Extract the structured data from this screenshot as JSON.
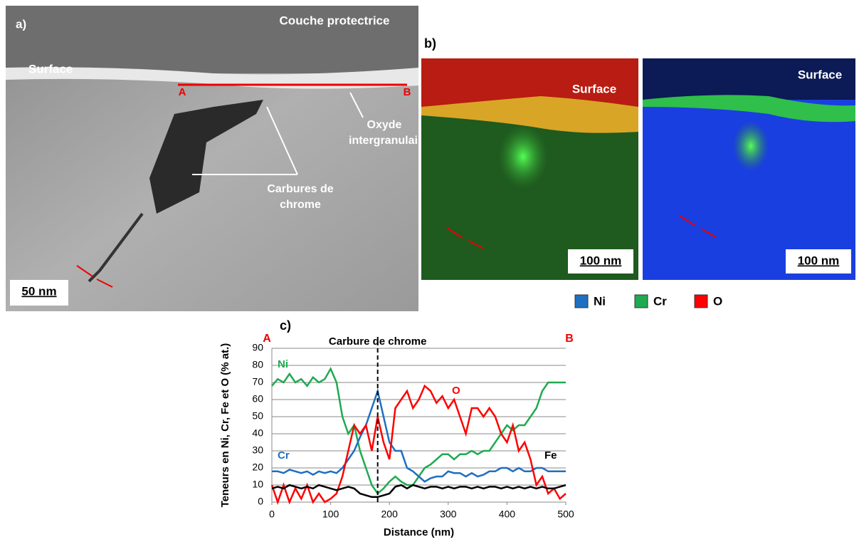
{
  "panels": {
    "a": {
      "label": "a)",
      "top_label": "Couche protectrice",
      "surface": "Surface",
      "point_a": "A",
      "point_b": "B",
      "oxide": "Oxyde intergranulaire",
      "carbides": "Carbures de chrome",
      "scale": "50 nm"
    },
    "b": {
      "label": "b)",
      "surface_left": "Surface",
      "surface_right": "Surface",
      "scale_left": "100 nm",
      "scale_right": "100 nm",
      "legend": [
        {
          "name": "Ni",
          "color": "#1f6fc0"
        },
        {
          "name": "Cr",
          "color": "#1faa50"
        },
        {
          "name": "O",
          "color": "#ff0000"
        }
      ]
    },
    "c": {
      "label": "c)",
      "point_a": "A",
      "point_b": "B"
    }
  },
  "chart_data": {
    "type": "line",
    "annotation": "Carbure de chrome",
    "marker_x": 180,
    "xlabel": "Distance (nm)",
    "ylabel": "Teneurs en Ni, Cr, Fe et O (% at.)",
    "xlim": [
      0,
      500
    ],
    "xticks": [
      0,
      100,
      200,
      300,
      400,
      500
    ],
    "ylim": [
      0,
      90
    ],
    "yticks": [
      0,
      10,
      20,
      30,
      40,
      50,
      60,
      70,
      80,
      90
    ],
    "grid": true,
    "x": [
      0,
      10,
      20,
      30,
      40,
      50,
      60,
      70,
      80,
      90,
      100,
      110,
      120,
      130,
      140,
      150,
      160,
      170,
      180,
      190,
      200,
      210,
      220,
      230,
      240,
      250,
      260,
      270,
      280,
      290,
      300,
      310,
      320,
      330,
      340,
      350,
      360,
      370,
      380,
      390,
      400,
      410,
      420,
      430,
      440,
      450,
      460,
      470,
      480,
      490,
      500
    ],
    "series": [
      {
        "name": "Ni",
        "color": "#1faa50",
        "values": [
          68,
          72,
          70,
          75,
          70,
          72,
          68,
          73,
          70,
          72,
          78,
          70,
          50,
          40,
          45,
          30,
          20,
          10,
          5,
          8,
          12,
          15,
          12,
          10,
          10,
          15,
          20,
          22,
          25,
          28,
          28,
          25,
          28,
          28,
          30,
          28,
          30,
          30,
          35,
          40,
          45,
          42,
          45,
          45,
          50,
          55,
          65,
          70,
          70,
          70,
          70
        ]
      },
      {
        "name": "Cr",
        "color": "#1f6fc0",
        "values": [
          18,
          18,
          17,
          19,
          18,
          17,
          18,
          16,
          18,
          17,
          18,
          17,
          20,
          25,
          30,
          38,
          45,
          55,
          65,
          50,
          35,
          30,
          30,
          20,
          18,
          15,
          12,
          14,
          15,
          15,
          18,
          17,
          17,
          15,
          17,
          15,
          16,
          18,
          18,
          20,
          20,
          18,
          20,
          18,
          18,
          20,
          20,
          18,
          18,
          18,
          18
        ]
      },
      {
        "name": "O",
        "color": "#ff0000",
        "values": [
          10,
          0,
          10,
          0,
          8,
          2,
          10,
          0,
          5,
          0,
          2,
          5,
          15,
          30,
          45,
          40,
          45,
          30,
          50,
          35,
          25,
          55,
          60,
          65,
          55,
          60,
          68,
          65,
          58,
          62,
          55,
          60,
          50,
          40,
          55,
          55,
          50,
          55,
          50,
          40,
          35,
          45,
          30,
          35,
          25,
          10,
          15,
          5,
          8,
          2,
          5
        ]
      },
      {
        "name": "Fe",
        "color": "#000000",
        "values": [
          8,
          9,
          8,
          10,
          9,
          8,
          9,
          8,
          10,
          9,
          8,
          7,
          8,
          9,
          8,
          5,
          4,
          3,
          3,
          4,
          5,
          9,
          10,
          8,
          10,
          9,
          8,
          9,
          9,
          8,
          9,
          8,
          9,
          9,
          8,
          9,
          8,
          9,
          9,
          8,
          9,
          8,
          9,
          8,
          9,
          8,
          9,
          8,
          8,
          9,
          10
        ]
      }
    ]
  }
}
